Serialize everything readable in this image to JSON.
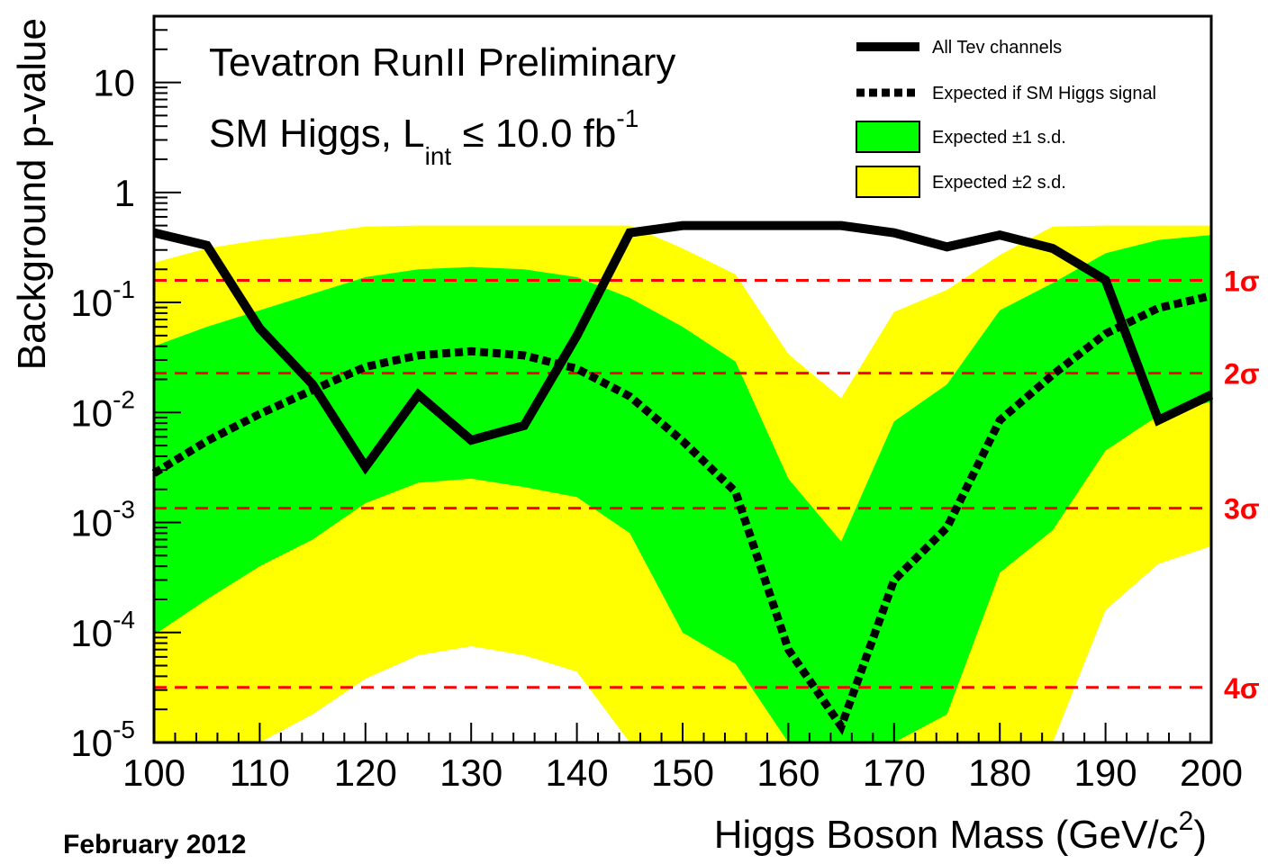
{
  "chart_data": {
    "type": "line",
    "scale_y": "log",
    "title_line1": "Tevatron RunII Preliminary",
    "title_line2_prefix": "SM Higgs, L",
    "title_line2_sub": "int",
    "title_line2_mid": " ≤ 10.0 fb",
    "title_line2_sup": "-1",
    "footer": "February 2012",
    "xlabel": "Higgs Boson Mass (GeV/c",
    "xlabel_sup": "2",
    "xlabel_end": ")",
    "ylabel": "Background p-value",
    "xlim": [
      100,
      200
    ],
    "ylim": [
      1e-05,
      40
    ],
    "xticks": [
      "100",
      "110",
      "120",
      "130",
      "140",
      "150",
      "160",
      "170",
      "180",
      "190",
      "200"
    ],
    "yticks": [
      {
        "base": "10",
        "exp": "-5",
        "value": 1e-05
      },
      {
        "base": "10",
        "exp": "-4",
        "value": 0.0001
      },
      {
        "base": "10",
        "exp": "-3",
        "value": 0.001
      },
      {
        "base": "10",
        "exp": "-2",
        "value": 0.01
      },
      {
        "base": "10",
        "exp": "-1",
        "value": 0.1
      },
      {
        "base": "1",
        "exp": "",
        "value": 1
      },
      {
        "base": "10",
        "exp": "",
        "value": 10
      }
    ],
    "x": [
      100,
      105,
      110,
      115,
      120,
      125,
      130,
      135,
      140,
      145,
      150,
      155,
      160,
      165,
      170,
      175,
      180,
      185,
      190,
      195,
      200
    ],
    "series": [
      {
        "name": "All Tev channels",
        "style": "solid",
        "color": "#000000",
        "values": [
          0.43,
          0.33,
          0.058,
          0.018,
          0.0032,
          0.0145,
          0.0056,
          0.0076,
          0.05,
          0.43,
          0.5,
          0.5,
          0.5,
          0.5,
          0.43,
          0.32,
          0.41,
          0.31,
          0.16,
          0.0085,
          0.0145
        ]
      },
      {
        "name": "Expected if SM Higgs signal",
        "style": "dotted",
        "color": "#000000",
        "values": [
          0.0028,
          0.0055,
          0.0097,
          0.016,
          0.026,
          0.033,
          0.036,
          0.033,
          0.025,
          0.014,
          0.0055,
          0.0019,
          7e-05,
          1.4e-05,
          0.0003,
          0.0009,
          0.0085,
          0.022,
          0.052,
          0.089,
          0.115
        ]
      }
    ],
    "bands": [
      {
        "name": "Expected ±2 s.d.",
        "color": "#ffff00",
        "upper": [
          0.23,
          0.31,
          0.37,
          0.42,
          0.49,
          0.5,
          0.5,
          0.5,
          0.5,
          0.5,
          0.31,
          0.18,
          0.034,
          0.0135,
          0.082,
          0.13,
          0.27,
          0.49,
          0.5,
          0.5,
          0.5
        ],
        "lower": [
          1e-05,
          1e-05,
          1e-05,
          1.8e-05,
          3.8e-05,
          6.2e-05,
          7.5e-05,
          6.2e-05,
          4.4e-05,
          1e-05,
          1e-05,
          1e-05,
          1e-05,
          1e-05,
          1e-05,
          1e-05,
          1e-05,
          1e-05,
          0.00016,
          0.00042,
          0.00061
        ]
      },
      {
        "name": "Expected ±1 s.d.",
        "color": "#00ff00",
        "upper": [
          0.04,
          0.06,
          0.085,
          0.12,
          0.17,
          0.2,
          0.21,
          0.2,
          0.17,
          0.11,
          0.06,
          0.029,
          0.0025,
          0.00067,
          0.0083,
          0.018,
          0.085,
          0.15,
          0.28,
          0.37,
          0.41
        ],
        "lower": [
          9.5e-05,
          0.0002,
          0.0004,
          0.0007,
          0.0015,
          0.0023,
          0.0025,
          0.0021,
          0.0017,
          0.0008,
          0.0001,
          5.2e-05,
          1e-05,
          1e-05,
          1e-05,
          1.8e-05,
          0.00035,
          0.00085,
          0.0045,
          0.0094,
          0.0125
        ]
      }
    ],
    "sigma_lines": [
      {
        "label": "1σ",
        "value": 0.1587
      },
      {
        "label": "2σ",
        "value": 0.02275
      },
      {
        "label": "3σ",
        "value": 0.00135
      },
      {
        "label": "4σ",
        "value": 3.17e-05
      }
    ],
    "sigma_color": "#ff0000",
    "legend": [
      {
        "label": "All Tev channels",
        "kind": "solid"
      },
      {
        "label": "Expected if SM Higgs signal",
        "kind": "dotted"
      },
      {
        "label": "Expected ±1 s.d.",
        "kind": "box",
        "color": "#00ff00"
      },
      {
        "label": "Expected ±2 s.d.",
        "kind": "box",
        "color": "#ffff00"
      }
    ]
  }
}
